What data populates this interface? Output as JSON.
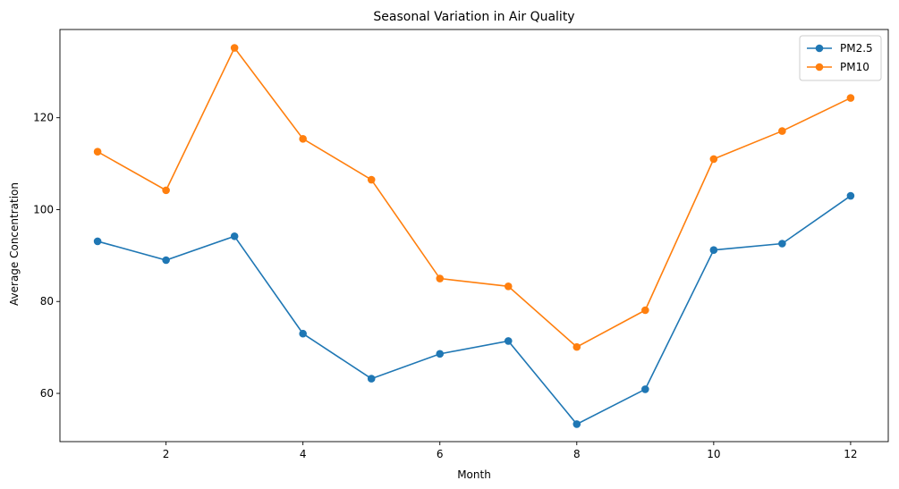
{
  "chart_data": {
    "type": "line",
    "title": "Seasonal Variation in Air Quality",
    "xlabel": "Month",
    "ylabel": "Average Concentration",
    "x": [
      1,
      2,
      3,
      4,
      5,
      6,
      7,
      8,
      9,
      10,
      11,
      12
    ],
    "xlim": [
      0.45,
      12.55
    ],
    "ylim": [
      49.5,
      139.2
    ],
    "xticks": [
      2,
      4,
      6,
      8,
      10,
      12
    ],
    "yticks": [
      60,
      80,
      100,
      120
    ],
    "grid": false,
    "legend_position": "top-right",
    "series": [
      {
        "name": "PM2.5",
        "color": "#1f77b4",
        "marker": "circle",
        "values": [
          93.1,
          89.0,
          94.2,
          73.0,
          63.2,
          68.6,
          71.4,
          53.3,
          60.9,
          91.2,
          92.6,
          103.0
        ]
      },
      {
        "name": "PM10",
        "color": "#ff7f0e",
        "marker": "circle",
        "values": [
          112.6,
          104.2,
          135.2,
          115.4,
          106.5,
          85.0,
          83.3,
          70.1,
          78.1,
          111.0,
          117.1,
          124.3
        ]
      }
    ]
  }
}
